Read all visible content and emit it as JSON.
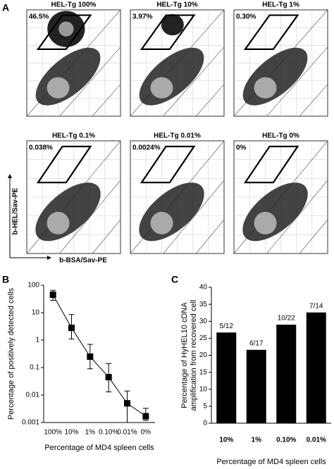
{
  "panel_a": {
    "label": "A",
    "y_label": "b-HEL/Sav-PE",
    "x_label": "b-BSA/Sav-PE",
    "plots": [
      {
        "title": "HEL-Tg 100%",
        "gate": "46.5%"
      },
      {
        "title": "HEL-Tg 10%",
        "gate": "3.97%"
      },
      {
        "title": "HEL-Tg 1%",
        "gate": "0.30%"
      },
      {
        "title": "HEL-Tg 0.1%",
        "gate": "0.038%"
      },
      {
        "title": "HEL-Tg 0.01%",
        "gate": "0.0024%"
      },
      {
        "title": "HEL-Tg 0%",
        "gate": "0%"
      }
    ]
  },
  "chart_data": [
    {
      "type": "line",
      "panel_label": "B",
      "y_label": "Percentage of positively detected cells",
      "x_label": "Percentage of MD4 spleen cells",
      "categories": [
        "100%",
        "10%",
        "1%",
        "0.10%",
        "0.01%",
        "0%"
      ],
      "values": [
        45,
        2.8,
        0.25,
        0.045,
        0.005,
        0.0017
      ],
      "upper": [
        65,
        8.5,
        0.7,
        0.14,
        0.014,
        0.0033
      ],
      "lower": [
        28,
        1.1,
        0.09,
        0.013,
        0.001,
        0.0012
      ],
      "color": "#000000",
      "log_scale": true,
      "ylim": [
        0.001,
        100
      ],
      "yticks": [
        100,
        10,
        1,
        0.1,
        0.01,
        0.001
      ]
    },
    {
      "type": "bar",
      "panel_label": "C",
      "y_label_lines": [
        "Percentage of HyHEL10 cDNA",
        "amplification from recovered cell"
      ],
      "x_label": "Percentage of MD4 spleen cells",
      "categories": [
        "10%",
        "1%",
        "0.10%",
        "0.01%"
      ],
      "values": [
        26.7,
        21.6,
        29.0,
        32.6
      ],
      "bar_labels": [
        "5/12",
        "6/17",
        "10/22",
        "7/14"
      ],
      "color": "#000000",
      "ylim": [
        0,
        40
      ],
      "yticks": [
        0,
        5,
        10,
        15,
        20,
        25,
        30,
        35,
        40
      ]
    }
  ]
}
